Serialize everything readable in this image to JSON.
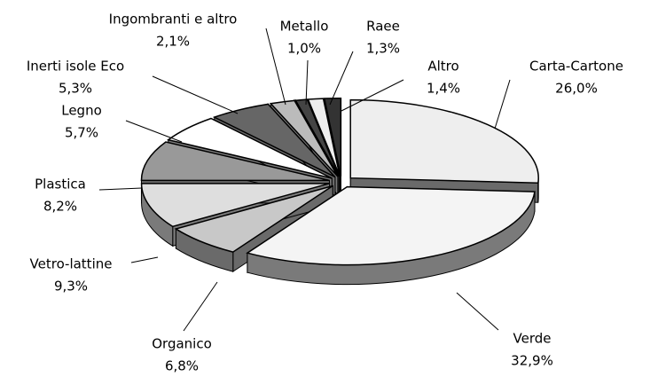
{
  "chart_data": {
    "type": "pie3d",
    "categories": [
      "Carta-Cartone",
      "Verde",
      "Organico",
      "Vetro-lattine",
      "Plastica",
      "Legno",
      "Inerti isole Eco",
      "Ingombranti e altro",
      "Metallo",
      "Raee",
      "Altro"
    ],
    "values": [
      26.0,
      32.9,
      6.8,
      9.3,
      8.2,
      5.7,
      5.3,
      2.1,
      1.0,
      1.3,
      1.4
    ],
    "value_labels": [
      "26,0%",
      "32,9%",
      "6,8%",
      "9,3%",
      "8,2%",
      "5,7%",
      "5,3%",
      "2,1%",
      "1,0%",
      "1,3%",
      "1,4%"
    ],
    "colors": [
      "#eeeeee",
      "#f4f4f4",
      "#c8c8c8",
      "#dedede",
      "#999999",
      "#ffffff",
      "#666666",
      "#bbbbbb",
      "#444444",
      "#eeeeee",
      "#333333"
    ]
  }
}
